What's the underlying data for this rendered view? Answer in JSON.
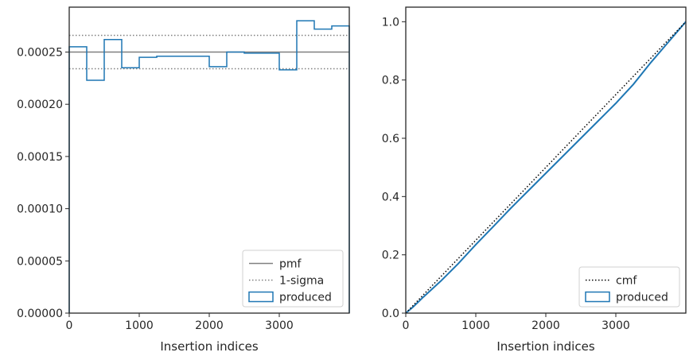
{
  "chart_data": [
    {
      "type": "step",
      "xlabel": "Insertion indices",
      "ylabel": "",
      "xlim": [
        0,
        4000
      ],
      "ylim": [
        0,
        0.000293
      ],
      "xticks": [
        0,
        1000,
        2000,
        3000
      ],
      "xtick_labels": [
        "0",
        "1000",
        "2000",
        "3000"
      ],
      "yticks": [
        0,
        5e-05,
        0.0001,
        0.00015,
        0.0002,
        0.00025
      ],
      "ytick_labels": [
        "0.00000",
        "0.00005",
        "0.00010",
        "0.00015",
        "0.00020",
        "0.00025"
      ],
      "grid": false,
      "legend_position": "lower-right",
      "legend": [
        "pmf",
        "1-sigma",
        "produced"
      ],
      "reference_lines": [
        {
          "name": "pmf",
          "y": 0.00025,
          "style": "solid",
          "color": "#808080"
        },
        {
          "name": "1-sigma",
          "y": 0.000266,
          "style": "dotted",
          "color": "#808080"
        },
        {
          "name": "1-sigma",
          "y": 0.000234,
          "style": "dotted",
          "color": "#808080"
        }
      ],
      "series": [
        {
          "name": "produced",
          "color": "#1f77b4",
          "bin_edges": [
            0,
            250,
            500,
            750,
            1000,
            1250,
            1500,
            1750,
            2000,
            2250,
            2500,
            2750,
            3000,
            3250,
            3500,
            3750,
            4000
          ],
          "values": [
            0.000255,
            0.000223,
            0.000262,
            0.000235,
            0.000245,
            0.000246,
            0.000246,
            0.000246,
            0.000236,
            0.00025,
            0.000249,
            0.000249,
            0.000233,
            0.00028,
            0.000272,
            0.000275
          ]
        }
      ]
    },
    {
      "type": "line",
      "xlabel": "Insertion indices",
      "ylabel": "",
      "xlim": [
        0,
        4000
      ],
      "ylim": [
        0,
        1.05
      ],
      "xticks": [
        0,
        1000,
        2000,
        3000
      ],
      "xtick_labels": [
        "0",
        "1000",
        "2000",
        "3000"
      ],
      "yticks": [
        0,
        0.2,
        0.4,
        0.6,
        0.8,
        1.0
      ],
      "ytick_labels": [
        "0.0",
        "0.2",
        "0.4",
        "0.6",
        "0.8",
        "1.0"
      ],
      "grid": false,
      "legend_position": "lower-right",
      "legend": [
        "cmf",
        "produced"
      ],
      "series": [
        {
          "name": "cmf",
          "style": "dotted",
          "color": "#000000",
          "x": [
            0,
            4000
          ],
          "y": [
            0,
            1.0
          ]
        },
        {
          "name": "produced",
          "style": "solid",
          "color": "#1f77b4",
          "x": [
            0,
            100,
            250,
            500,
            750,
            1000,
            1250,
            1500,
            1750,
            2000,
            2250,
            2500,
            2750,
            3000,
            3250,
            3500,
            3750,
            4000
          ],
          "y": [
            0,
            0.02,
            0.055,
            0.11,
            0.17,
            0.235,
            0.297,
            0.36,
            0.42,
            0.48,
            0.54,
            0.6,
            0.66,
            0.72,
            0.785,
            0.86,
            0.93,
            1.0
          ]
        }
      ]
    }
  ]
}
